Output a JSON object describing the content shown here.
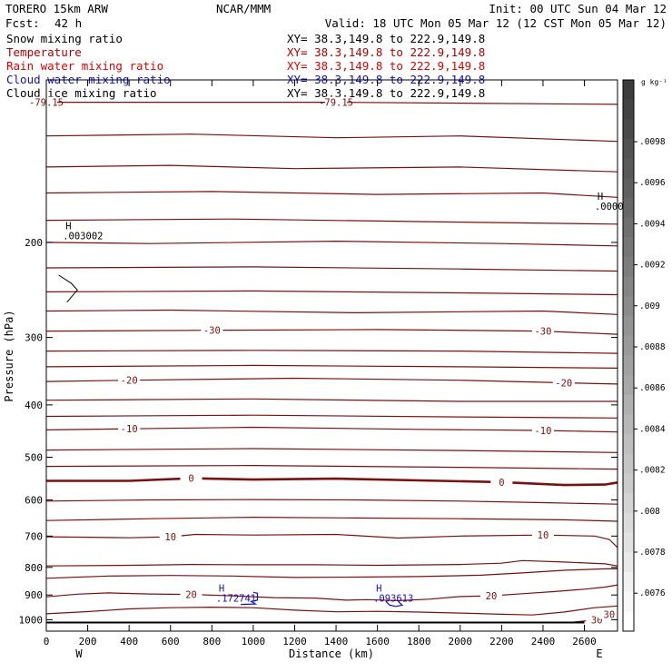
{
  "header": {
    "model": "TORERO   15km ARW",
    "center": "NCAR/MMM",
    "init": "Init: 00 UTC Sun 04 Mar 12",
    "fcst_label": "Fcst:",
    "fcst_value": "42 h",
    "valid": "Valid: 18 UTC Mon 05 Mar 12 (12 CST Mon 05 Mar 12)"
  },
  "fields": [
    {
      "name": "Snow mixing ratio",
      "color": "#000000"
    },
    {
      "name": "Temperature",
      "color": "#b00000"
    },
    {
      "name": "Rain water mixing ratio",
      "color": "#e00000"
    },
    {
      "name": "Cloud water mixing ratio",
      "color": "#1010c0"
    },
    {
      "name": "Cloud ice mixing ratio",
      "color": "#000000"
    }
  ],
  "xy_lines": [
    {
      "text": "XY=  38.3,149.8 to 222.9,149.8",
      "color": "#000000"
    },
    {
      "text": "XY=  38.3,149.8 to 222.9,149.8",
      "color": "#b00000"
    },
    {
      "text": "XY=  38.3,149.8 to 222.9,149.8",
      "color": "#e00000"
    },
    {
      "text": "XY=  38.3,149.8 to 222.9,149.8",
      "color": "#1010c0"
    },
    {
      "text": "XY=  38.3,149.8 to 222.9,149.8",
      "color": "#000000"
    }
  ],
  "axes": {
    "xlabel": "Distance (km)",
    "ylabel": "Pressure (hPa)",
    "x_ticks": [
      0,
      200,
      400,
      600,
      800,
      1000,
      1200,
      1400,
      1600,
      1800,
      2000,
      2200,
      2400,
      2600
    ],
    "y_ticks": [
      200,
      300,
      400,
      500,
      600,
      700,
      800,
      900,
      1000
    ],
    "xlim": [
      0,
      2760
    ],
    "ylim": [
      1050,
      100
    ],
    "y_scale": "log",
    "left_end": "W",
    "right_end": "E"
  },
  "colorbar": {
    "unit": "g kg⁻¹",
    "ticks": [
      ".0098",
      ".0096",
      ".0094",
      ".0092",
      ".009",
      ".0088",
      ".0086",
      ".0084",
      ".0082",
      ".008",
      ".0078",
      ".0076"
    ]
  },
  "chart_data": {
    "type": "line",
    "title": "Temperature",
    "xlabel": "Distance (km)",
    "ylabel": "Pressure (hPa)",
    "xlim": [
      0,
      2760
    ],
    "ylim": [
      1050,
      100
    ],
    "series_color": "#7a1010",
    "temperature_contours": [
      {
        "level": "-79.15",
        "points": [
          [
            0,
            110
          ],
          [
            1400,
            110
          ],
          [
            2760,
            111
          ]
        ]
      },
      {
        "level": "",
        "points": [
          [
            0,
            127
          ],
          [
            700,
            126
          ],
          [
            1400,
            128
          ],
          [
            2000,
            127
          ],
          [
            2760,
            130
          ]
        ]
      },
      {
        "level": "",
        "points": [
          [
            0,
            145
          ],
          [
            600,
            144
          ],
          [
            1200,
            146
          ],
          [
            2000,
            145
          ],
          [
            2760,
            148
          ]
        ]
      },
      {
        "level": "",
        "points": [
          [
            0,
            162
          ],
          [
            800,
            161
          ],
          [
            1600,
            163
          ],
          [
            2400,
            162
          ],
          [
            2760,
            165
          ]
        ]
      },
      {
        "level": "",
        "points": [
          [
            0,
            182
          ],
          [
            900,
            181
          ],
          [
            1800,
            183
          ],
          [
            2760,
            185
          ]
        ]
      },
      {
        "level": "",
        "points": [
          [
            0,
            200
          ],
          [
            500,
            201
          ],
          [
            1400,
            199
          ],
          [
            2200,
            201
          ],
          [
            2760,
            203
          ]
        ]
      },
      {
        "level": "",
        "points": [
          [
            0,
            223
          ],
          [
            1000,
            222
          ],
          [
            2000,
            224
          ],
          [
            2760,
            226
          ]
        ]
      },
      {
        "level": "",
        "points": [
          [
            0,
            247
          ],
          [
            1000,
            246
          ],
          [
            2000,
            248
          ],
          [
            2760,
            250
          ]
        ]
      },
      {
        "level": "",
        "points": [
          [
            0,
            268
          ],
          [
            600,
            267
          ],
          [
            1500,
            270
          ],
          [
            2400,
            268
          ],
          [
            2760,
            272
          ]
        ]
      },
      {
        "level": "-30",
        "points": [
          [
            0,
            292
          ],
          [
            800,
            291
          ],
          [
            1600,
            290
          ],
          [
            2400,
            292
          ],
          [
            2760,
            296
          ]
        ]
      },
      {
        "level": "",
        "points": [
          [
            0,
            318
          ],
          [
            1000,
            317
          ],
          [
            2000,
            318
          ],
          [
            2760,
            321
          ]
        ]
      },
      {
        "level": "",
        "points": [
          [
            0,
            340
          ],
          [
            1000,
            338
          ],
          [
            2000,
            340
          ],
          [
            2760,
            342
          ]
        ]
      },
      {
        "level": "-20",
        "points": [
          [
            0,
            362
          ],
          [
            400,
            360
          ],
          [
            1200,
            357
          ],
          [
            2000,
            360
          ],
          [
            2500,
            364
          ],
          [
            2760,
            366
          ]
        ]
      },
      {
        "level": "",
        "points": [
          [
            0,
            392
          ],
          [
            1000,
            390
          ],
          [
            2000,
            394
          ],
          [
            2760,
            394
          ]
        ]
      },
      {
        "level": "",
        "points": [
          [
            0,
            420
          ],
          [
            1000,
            418
          ],
          [
            2000,
            421
          ],
          [
            2760,
            423
          ]
        ]
      },
      {
        "level": "-10",
        "points": [
          [
            0,
            445
          ],
          [
            400,
            443
          ],
          [
            1000,
            440
          ],
          [
            1800,
            444
          ],
          [
            2400,
            446
          ],
          [
            2760,
            449
          ]
        ]
      },
      {
        "level": "",
        "points": [
          [
            0,
            485
          ],
          [
            1000,
            482
          ],
          [
            2000,
            486
          ],
          [
            2760,
            490
          ]
        ]
      },
      {
        "level": "",
        "points": [
          [
            0,
            520
          ],
          [
            1000,
            518
          ],
          [
            2000,
            522
          ],
          [
            2760,
            526
          ]
        ]
      },
      {
        "level": "0",
        "points": [
          [
            0,
            553
          ],
          [
            400,
            553
          ],
          [
            700,
            547
          ],
          [
            1000,
            550
          ],
          [
            1400,
            548
          ],
          [
            1800,
            552
          ],
          [
            2200,
            556
          ],
          [
            2500,
            563
          ],
          [
            2700,
            562
          ],
          [
            2760,
            557
          ]
        ]
      },
      {
        "level": "",
        "points": [
          [
            0,
            603
          ],
          [
            500,
            600
          ],
          [
            1000,
            599
          ],
          [
            1500,
            600
          ],
          [
            2000,
            603
          ],
          [
            2400,
            607
          ],
          [
            2760,
            611
          ]
        ]
      },
      {
        "level": "",
        "points": [
          [
            0,
            655
          ],
          [
            500,
            650
          ],
          [
            1000,
            646
          ],
          [
            1500,
            648
          ],
          [
            2000,
            650
          ],
          [
            2500,
            653
          ],
          [
            2760,
            657
          ]
        ]
      },
      {
        "level": "10",
        "points": [
          [
            0,
            702
          ],
          [
            400,
            705
          ],
          [
            600,
            702
          ],
          [
            720,
            695
          ],
          [
            1000,
            697
          ],
          [
            1400,
            695
          ],
          [
            1700,
            706
          ],
          [
            2000,
            700
          ],
          [
            2400,
            697
          ],
          [
            2650,
            700
          ],
          [
            2720,
            710
          ],
          [
            2760,
            735
          ]
        ]
      },
      {
        "level": "",
        "points": [
          [
            0,
            795
          ],
          [
            400,
            793
          ],
          [
            700,
            790
          ],
          [
            1000,
            791
          ],
          [
            1300,
            791
          ],
          [
            1600,
            793
          ],
          [
            2000,
            790
          ],
          [
            2200,
            786
          ],
          [
            2300,
            777
          ],
          [
            2500,
            782
          ],
          [
            2700,
            788
          ],
          [
            2760,
            795
          ]
        ]
      },
      {
        "level": "",
        "points": [
          [
            0,
            838
          ],
          [
            300,
            830
          ],
          [
            600,
            828
          ],
          [
            900,
            830
          ],
          [
            1200,
            835
          ],
          [
            1500,
            834
          ],
          [
            1800,
            832
          ],
          [
            2100,
            827
          ],
          [
            2300,
            819
          ],
          [
            2500,
            810
          ],
          [
            2700,
            805
          ],
          [
            2760,
            805
          ]
        ]
      },
      {
        "level": "20",
        "points": [
          [
            0,
            907
          ],
          [
            150,
            897
          ],
          [
            300,
            892
          ],
          [
            500,
            896
          ],
          [
            700,
            898
          ],
          [
            900,
            903
          ],
          [
            1100,
            910
          ],
          [
            1300,
            912
          ],
          [
            1450,
            920
          ],
          [
            1550,
            918
          ],
          [
            1700,
            922
          ],
          [
            1850,
            916
          ],
          [
            2000,
            906
          ],
          [
            2150,
            903
          ],
          [
            2300,
            895
          ],
          [
            2450,
            887
          ],
          [
            2600,
            878
          ],
          [
            2700,
            870
          ],
          [
            2760,
            862
          ]
        ]
      },
      {
        "level": "",
        "points": [
          [
            0,
            975
          ],
          [
            200,
            966
          ],
          [
            400,
            955
          ],
          [
            600,
            950
          ],
          [
            800,
            948
          ],
          [
            1000,
            950
          ],
          [
            1200,
            960
          ],
          [
            1400,
            967
          ],
          [
            1600,
            965
          ],
          [
            1800,
            968
          ],
          [
            2000,
            972
          ],
          [
            2200,
            977
          ],
          [
            2350,
            980
          ],
          [
            2500,
            968
          ],
          [
            2650,
            950
          ],
          [
            2760,
            943
          ]
        ]
      },
      {
        "level": "30",
        "points": [
          [
            2550,
            1010
          ],
          [
            2660,
            1000
          ],
          [
            2720,
            978
          ],
          [
            2760,
            990
          ]
        ]
      }
    ],
    "max_labels": [
      {
        "label": "H",
        "value": ".003002",
        "x": 80,
        "p": 195
      },
      {
        "label": "H",
        "value": ".172741",
        "x": 820,
        "p": 915
      },
      {
        "label": "H",
        "value": ".093613",
        "x": 1580,
        "p": 915
      },
      {
        "label": "H",
        "value": ".0000",
        "x": 2650,
        "p": 172
      }
    ],
    "ground_pressure": 1012
  }
}
